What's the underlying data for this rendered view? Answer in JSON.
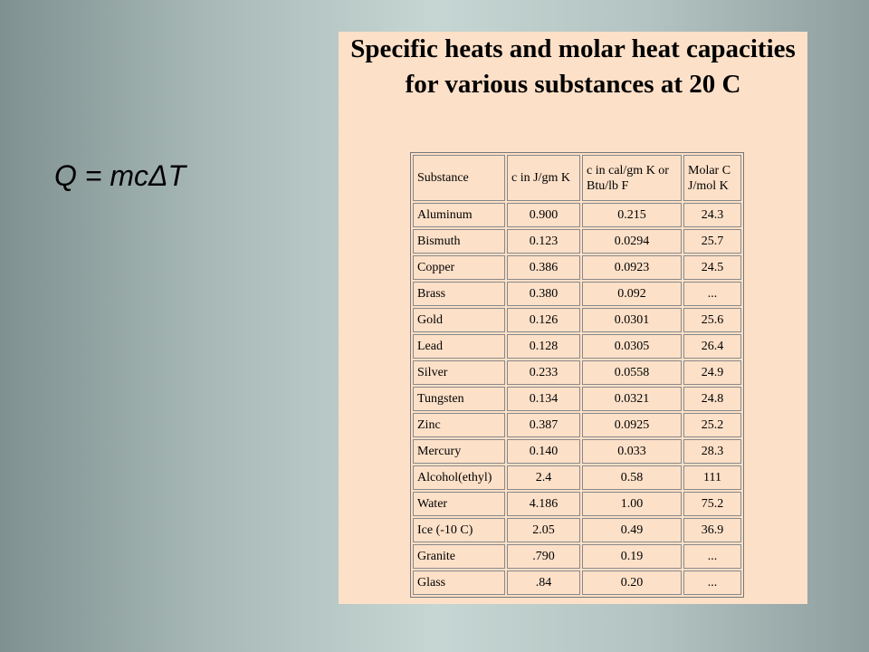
{
  "formula": "Q = mcΔT",
  "panel": {
    "title": "Specific heats and molar heat capacities for various substances at 20 C"
  },
  "table": {
    "header": [
      "Substance",
      "c in J/gm K",
      "c in cal/gm K or Btu/lb F",
      "Molar C J/mol K"
    ],
    "rows": [
      [
        "Aluminum",
        "0.900",
        "0.215",
        "24.3"
      ],
      [
        "Bismuth",
        "0.123",
        "0.0294",
        "25.7"
      ],
      [
        "Copper",
        "0.386",
        "0.0923",
        "24.5"
      ],
      [
        "Brass",
        "0.380",
        "0.092",
        "..."
      ],
      [
        "Gold",
        "0.126",
        "0.0301",
        "25.6"
      ],
      [
        "Lead",
        "0.128",
        "0.0305",
        "26.4"
      ],
      [
        "Silver",
        "0.233",
        "0.0558",
        "24.9"
      ],
      [
        "Tungsten",
        "0.134",
        "0.0321",
        "24.8"
      ],
      [
        "Zinc",
        "0.387",
        "0.0925",
        "25.2"
      ],
      [
        "Mercury",
        "0.140",
        "0.033",
        "28.3"
      ],
      [
        "Alcohol(ethyl)",
        "2.4",
        "0.58",
        "111"
      ],
      [
        "Water",
        "4.186",
        "1.00",
        "75.2"
      ],
      [
        "Ice (-10 C)",
        "2.05",
        "0.49",
        "36.9"
      ],
      [
        "Granite",
        ".790",
        "0.19",
        "..."
      ],
      [
        "Glass",
        ".84",
        "0.20",
        "..."
      ]
    ]
  }
}
